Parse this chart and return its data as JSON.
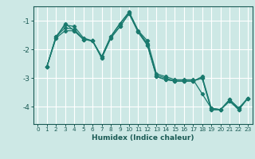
{
  "title": "",
  "xlabel": "Humidex (Indice chaleur)",
  "ylabel": "",
  "background_color": "#cde8e5",
  "grid_color": "#ffffff",
  "line_color": "#1a7a6e",
  "xlim": [
    -0.5,
    23.5
  ],
  "ylim": [
    -4.6,
    -0.5
  ],
  "yticks": [
    -4,
    -3,
    -2,
    -1
  ],
  "xticks": [
    0,
    1,
    2,
    3,
    4,
    5,
    6,
    7,
    8,
    9,
    10,
    11,
    12,
    13,
    14,
    15,
    16,
    17,
    18,
    19,
    20,
    21,
    22,
    23
  ],
  "series_x": [
    [
      1,
      2,
      3,
      4,
      5,
      6,
      7,
      8,
      9,
      10,
      11,
      12,
      13,
      14,
      15,
      16,
      17,
      18,
      19,
      20,
      21,
      22,
      23
    ],
    [
      1,
      2,
      3,
      4,
      5,
      6,
      7,
      8,
      9,
      10,
      11,
      12,
      13,
      14,
      15,
      16,
      17,
      18,
      19,
      20,
      21,
      22,
      23
    ],
    [
      1,
      2,
      3,
      4,
      5,
      6,
      7,
      8,
      9,
      10,
      11,
      12,
      13,
      14,
      15,
      16,
      17,
      18,
      19,
      20,
      21,
      22,
      23
    ],
    [
      1,
      2,
      3,
      4,
      5,
      6,
      7,
      8,
      9,
      10,
      11,
      12,
      13,
      14,
      15,
      16,
      17,
      18,
      19,
      20,
      21,
      22,
      23
    ]
  ],
  "series_y": [
    [
      -2.6,
      -1.55,
      -1.15,
      -1.2,
      -1.6,
      -1.7,
      -2.25,
      -1.55,
      -1.1,
      -0.7,
      -1.35,
      -1.7,
      -2.85,
      -2.95,
      -3.05,
      -3.05,
      -3.05,
      -3.55,
      -4.05,
      -4.1,
      -3.75,
      -4.05,
      -3.7
    ],
    [
      -2.6,
      -1.55,
      -1.25,
      -1.3,
      -1.65,
      -1.7,
      -2.25,
      -1.55,
      -1.1,
      -0.7,
      -1.35,
      -1.8,
      -2.9,
      -3.0,
      -3.1,
      -3.1,
      -3.1,
      -2.95,
      -4.05,
      -4.1,
      -3.75,
      -4.05,
      -3.7
    ],
    [
      -2.6,
      -1.6,
      -1.35,
      -1.35,
      -1.65,
      -1.7,
      -2.3,
      -1.6,
      -1.2,
      -0.75,
      -1.4,
      -1.85,
      -2.95,
      -3.05,
      -3.1,
      -3.1,
      -3.1,
      -3.0,
      -4.1,
      -4.1,
      -3.8,
      -4.1,
      -3.7
    ],
    [
      -2.6,
      -1.6,
      -1.1,
      -1.35,
      -1.65,
      -1.7,
      -2.3,
      -1.6,
      -1.2,
      -0.75,
      -1.4,
      -1.85,
      -2.95,
      -3.05,
      -3.1,
      -3.1,
      -3.1,
      -3.0,
      -4.1,
      -4.1,
      -3.8,
      -4.1,
      -3.7
    ]
  ]
}
